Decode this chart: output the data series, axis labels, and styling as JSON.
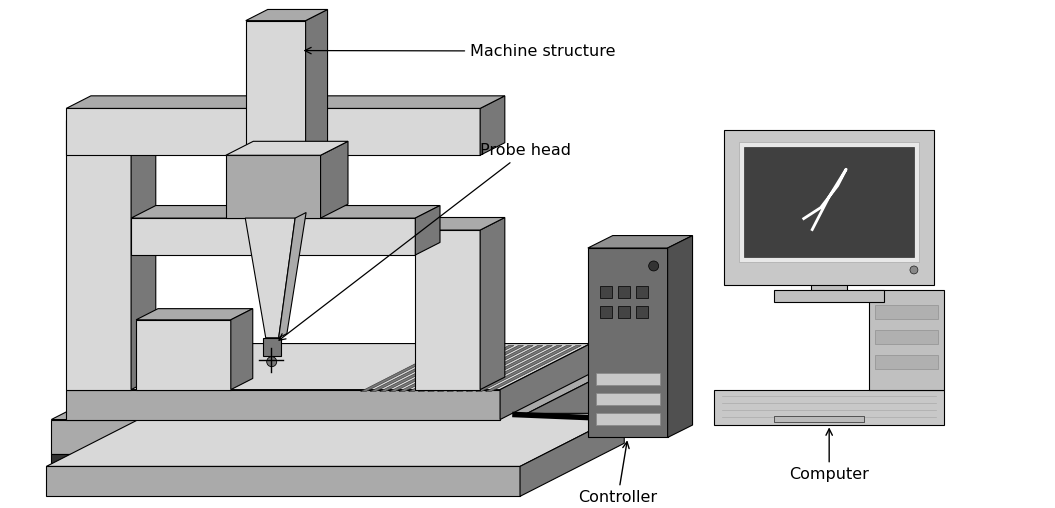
{
  "labels": {
    "machine_structure": "Machine structure",
    "probe_head": "Probe head",
    "controller": "Controller",
    "computer": "Computer"
  },
  "colors": {
    "bg": "#ffffff",
    "light": "#d8d8d8",
    "mid": "#aaaaaa",
    "dark": "#787878",
    "darker": "#555555",
    "darkest": "#333333",
    "black": "#000000",
    "ctrl_body": "#696969",
    "ctrl_panel": "#555555",
    "white_ish": "#f0f0f0"
  },
  "font_size": 11.5
}
